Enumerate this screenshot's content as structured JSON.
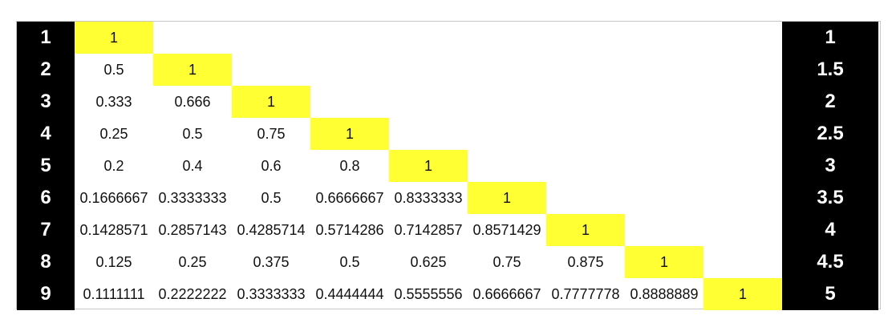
{
  "row_labels": [
    "1",
    "2",
    "3",
    "4",
    "5",
    "6",
    "7",
    "8",
    "9"
  ],
  "right_labels": [
    "1",
    "1.5",
    "2",
    "2.5",
    "3",
    "3.5",
    "4",
    "4.5",
    "5"
  ],
  "rows": [
    [
      "1"
    ],
    [
      "0.5",
      "1"
    ],
    [
      "0.333",
      "0.666",
      "1"
    ],
    [
      "0.25",
      "0.5",
      "0.75",
      "1"
    ],
    [
      "0.2",
      "0.4",
      "0.6",
      "0.8",
      "1"
    ],
    [
      "0.1666667",
      "0.3333333",
      "0.5",
      "0.6666667",
      "0.8333333",
      "1"
    ],
    [
      "0.1428571",
      "0.2857143",
      "0.4285714",
      "0.5714286",
      "0.7142857",
      "0.8571429",
      "1"
    ],
    [
      "0.125",
      "0.25",
      "0.375",
      "0.5",
      "0.625",
      "0.75",
      "0.875",
      "1"
    ],
    [
      "0.1111111",
      "0.2222222",
      "0.3333333",
      "0.4444444",
      "0.5555556",
      "0.6666667",
      "0.7777778",
      "0.8888889",
      "1"
    ]
  ],
  "colors": {
    "label_bg": "#000000",
    "label_text": "#ffffff",
    "diagonal_bg": "#ffff33",
    "cell_text": "#111111"
  }
}
